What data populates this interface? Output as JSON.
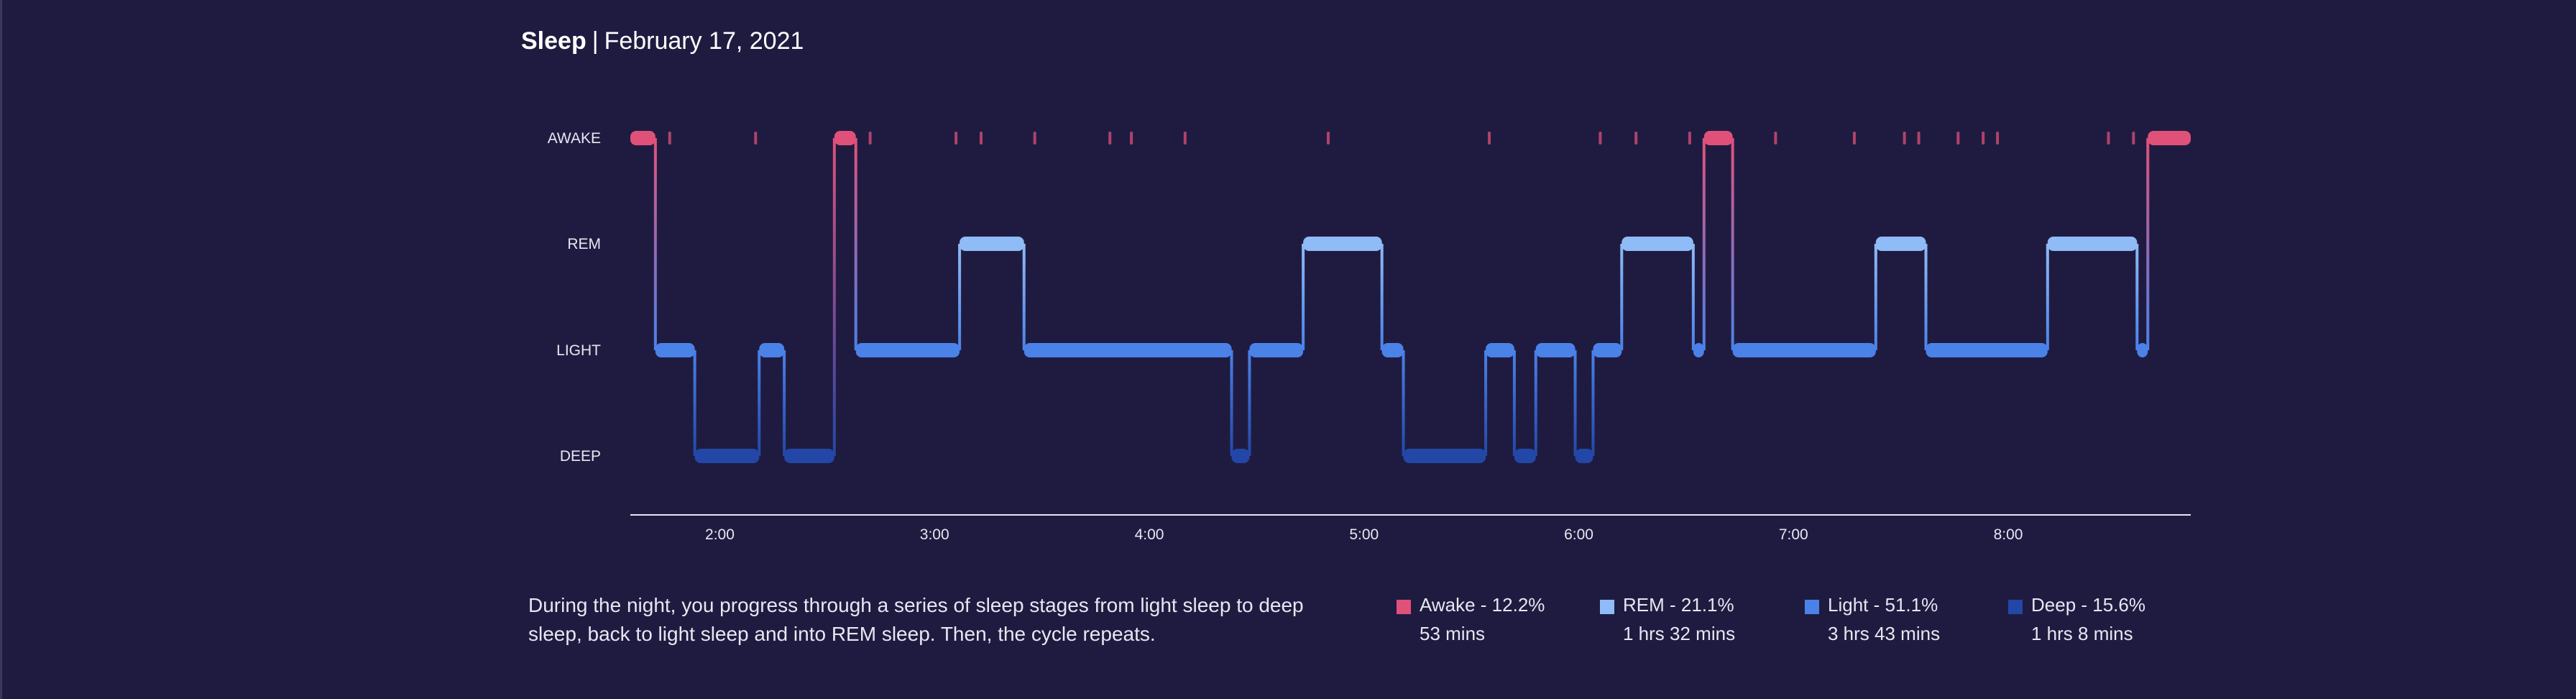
{
  "header": {
    "title": "Sleep",
    "separator": "|",
    "date": "February 17, 2021"
  },
  "description": "During the night, you progress through a series of sleep stages from light sleep to deep sleep, back to light sleep and into REM sleep. Then, the cycle repeats.",
  "colors": {
    "background": "#1f1b40",
    "awake": "#e0517a",
    "rem": "#8fbbf6",
    "light": "#4a82e8",
    "deep": "#2347a6",
    "axis": "#e8e6f2"
  },
  "legend": [
    {
      "key": "awake",
      "label": "Awake - 12.2%",
      "duration": "53 mins",
      "color": "#e0517a"
    },
    {
      "key": "rem",
      "label": "REM - 21.1%",
      "duration": "1 hrs 32 mins",
      "color": "#8fbbf6"
    },
    {
      "key": "light",
      "label": "Light - 51.1%",
      "duration": "3 hrs 43 mins",
      "color": "#4a82e8"
    },
    {
      "key": "deep",
      "label": "Deep - 15.6%",
      "duration": "1 hrs 8 mins",
      "color": "#2347a6"
    }
  ],
  "chart_data": {
    "type": "step",
    "title": "",
    "xlabel": "",
    "ylabel": "",
    "y_categories": [
      "AWAKE",
      "REM",
      "LIGHT",
      "DEEP"
    ],
    "x_ticks": [
      "2:00",
      "3:00",
      "4:00",
      "5:00",
      "6:00",
      "7:00",
      "8:00"
    ],
    "xlim": [
      "1:35",
      "8:51"
    ],
    "grid": false,
    "segments": [
      {
        "stage": "AWAKE",
        "start": "1:35",
        "end": "1:42"
      },
      {
        "stage": "LIGHT",
        "start": "1:42",
        "end": "1:53"
      },
      {
        "stage": "DEEP",
        "start": "1:53",
        "end": "2:11"
      },
      {
        "stage": "LIGHT",
        "start": "2:11",
        "end": "2:18"
      },
      {
        "stage": "DEEP",
        "start": "2:18",
        "end": "2:32"
      },
      {
        "stage": "AWAKE",
        "start": "2:32",
        "end": "2:38"
      },
      {
        "stage": "LIGHT",
        "start": "2:38",
        "end": "3:07"
      },
      {
        "stage": "REM",
        "start": "3:07",
        "end": "3:25"
      },
      {
        "stage": "LIGHT",
        "start": "3:25",
        "end": "4:23"
      },
      {
        "stage": "DEEP",
        "start": "4:23",
        "end": "4:28"
      },
      {
        "stage": "LIGHT",
        "start": "4:28",
        "end": "4:43"
      },
      {
        "stage": "REM",
        "start": "4:43",
        "end": "5:05"
      },
      {
        "stage": "LIGHT",
        "start": "5:05",
        "end": "5:11"
      },
      {
        "stage": "DEEP",
        "start": "5:11",
        "end": "5:34"
      },
      {
        "stage": "LIGHT",
        "start": "5:34",
        "end": "5:42"
      },
      {
        "stage": "DEEP",
        "start": "5:42",
        "end": "5:48"
      },
      {
        "stage": "LIGHT",
        "start": "5:48",
        "end": "5:59"
      },
      {
        "stage": "DEEP",
        "start": "5:59",
        "end": "6:04"
      },
      {
        "stage": "LIGHT",
        "start": "6:04",
        "end": "6:12"
      },
      {
        "stage": "REM",
        "start": "6:12",
        "end": "6:32"
      },
      {
        "stage": "LIGHT",
        "start": "6:32",
        "end": "6:35"
      },
      {
        "stage": "AWAKE",
        "start": "6:35",
        "end": "6:43"
      },
      {
        "stage": "LIGHT",
        "start": "6:43",
        "end": "7:23"
      },
      {
        "stage": "REM",
        "start": "7:23",
        "end": "7:37"
      },
      {
        "stage": "LIGHT",
        "start": "7:37",
        "end": "8:11"
      },
      {
        "stage": "REM",
        "start": "8:11",
        "end": "8:36"
      },
      {
        "stage": "LIGHT",
        "start": "8:36",
        "end": "8:39"
      },
      {
        "stage": "AWAKE",
        "start": "8:39",
        "end": "8:51"
      }
    ],
    "brief_awakenings": [
      "1:46",
      "2:10",
      "2:42",
      "3:06",
      "3:13",
      "3:28",
      "3:49",
      "3:55",
      "4:10",
      "4:50",
      "5:35",
      "6:06",
      "6:16",
      "6:31",
      "6:55",
      "7:17",
      "7:31",
      "7:35",
      "7:46",
      "7:53",
      "7:57",
      "8:28",
      "8:35"
    ]
  }
}
